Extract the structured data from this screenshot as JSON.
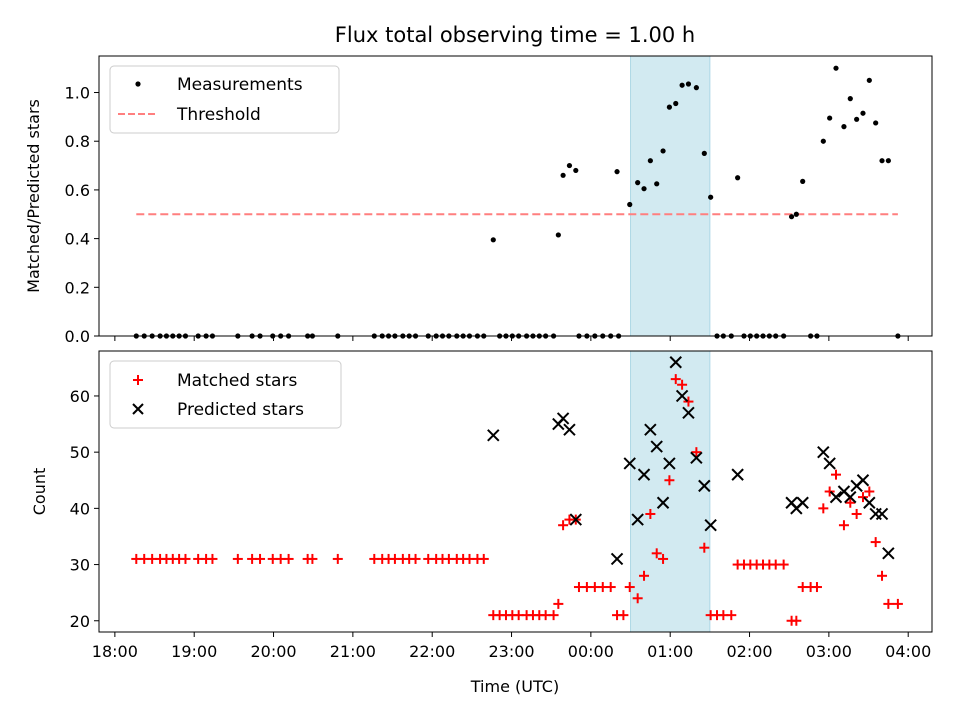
{
  "chart_data": [
    {
      "type": "scatter",
      "title": "Flux total observing time = 1.00 h",
      "ylabel": "Matched/Predicted stars",
      "xlim": [
        -0.2,
        10.3
      ],
      "ylim": [
        0,
        1.15
      ],
      "yticks": [
        0.0,
        0.2,
        0.4,
        0.6,
        0.8,
        1.0
      ],
      "ytick_labels": [
        "0.0",
        "0.2",
        "0.4",
        "0.6",
        "0.8",
        "1.0"
      ],
      "highlight": {
        "x_start": 6.5,
        "x_end": 7.5,
        "color": "#add8e6"
      },
      "legend": {
        "location": "top-left",
        "entries": [
          "Measurements",
          "Threshold"
        ]
      },
      "threshold": {
        "name": "Threshold",
        "y": 0.5,
        "x_range": [
          0.27,
          9.87
        ],
        "color": "#ff7f7f"
      },
      "series": [
        {
          "name": "Measurements",
          "color": "#000000",
          "points": [
            [
              0.27,
              0
            ],
            [
              0.37,
              0
            ],
            [
              0.47,
              0
            ],
            [
              0.57,
              0
            ],
            [
              0.65,
              0
            ],
            [
              0.73,
              0
            ],
            [
              0.81,
              0
            ],
            [
              0.89,
              0
            ],
            [
              1.05,
              0
            ],
            [
              1.15,
              0
            ],
            [
              1.23,
              0
            ],
            [
              1.55,
              0
            ],
            [
              1.73,
              0
            ],
            [
              1.83,
              0
            ],
            [
              1.99,
              0
            ],
            [
              2.09,
              0
            ],
            [
              2.19,
              0
            ],
            [
              2.43,
              0
            ],
            [
              2.49,
              0
            ],
            [
              2.81,
              0
            ],
            [
              3.27,
              0
            ],
            [
              3.37,
              0
            ],
            [
              3.45,
              0
            ],
            [
              3.53,
              0
            ],
            [
              3.63,
              0
            ],
            [
              3.71,
              0
            ],
            [
              3.79,
              0
            ],
            [
              3.95,
              0
            ],
            [
              4.05,
              0
            ],
            [
              4.13,
              0
            ],
            [
              4.21,
              0
            ],
            [
              4.31,
              0
            ],
            [
              4.39,
              0
            ],
            [
              4.47,
              0
            ],
            [
              4.57,
              0
            ],
            [
              4.65,
              0
            ],
            [
              4.77,
              0.395
            ],
            [
              4.85,
              0
            ],
            [
              4.93,
              0
            ],
            [
              5.01,
              0
            ],
            [
              5.09,
              0
            ],
            [
              5.19,
              0
            ],
            [
              5.27,
              0
            ],
            [
              5.35,
              0
            ],
            [
              5.43,
              0
            ],
            [
              5.53,
              0
            ],
            [
              5.59,
              0.415
            ],
            [
              5.65,
              0.66
            ],
            [
              5.73,
              0.7
            ],
            [
              5.81,
              0.68
            ],
            [
              5.85,
              0
            ],
            [
              5.95,
              0
            ],
            [
              6.05,
              0
            ],
            [
              6.15,
              0
            ],
            [
              6.25,
              0
            ],
            [
              6.33,
              0.675
            ],
            [
              6.35,
              0
            ],
            [
              6.49,
              0.54
            ],
            [
              6.59,
              0.63
            ],
            [
              6.67,
              0.605
            ],
            [
              6.75,
              0.72
            ],
            [
              6.83,
              0.625
            ],
            [
              6.91,
              0.76
            ],
            [
              6.99,
              0.94
            ],
            [
              7.07,
              0.955
            ],
            [
              7.15,
              1.03
            ],
            [
              7.23,
              1.035
            ],
            [
              7.33,
              1.02
            ],
            [
              7.43,
              0.75
            ],
            [
              7.51,
              0.57
            ],
            [
              7.59,
              0
            ],
            [
              7.67,
              0
            ],
            [
              7.77,
              0
            ],
            [
              7.85,
              0.65
            ],
            [
              7.93,
              0
            ],
            [
              8.01,
              0
            ],
            [
              8.09,
              0
            ],
            [
              8.17,
              0
            ],
            [
              8.25,
              0
            ],
            [
              8.33,
              0
            ],
            [
              8.43,
              0
            ],
            [
              8.53,
              0.49
            ],
            [
              8.59,
              0.5
            ],
            [
              8.67,
              0.635
            ],
            [
              8.77,
              0
            ],
            [
              8.85,
              0
            ],
            [
              8.93,
              0.8
            ],
            [
              9.01,
              0.895
            ],
            [
              9.09,
              1.1
            ],
            [
              9.19,
              0.86
            ],
            [
              9.27,
              0.975
            ],
            [
              9.35,
              0.89
            ],
            [
              9.43,
              0.915
            ],
            [
              9.51,
              1.05
            ],
            [
              9.59,
              0.875
            ],
            [
              9.67,
              0.72
            ],
            [
              9.75,
              0.72
            ],
            [
              9.87,
              0
            ]
          ]
        }
      ]
    },
    {
      "type": "scatter",
      "xlabel": "Time (UTC)",
      "ylabel": "Count",
      "xlim": [
        -0.2,
        10.3
      ],
      "ylim": [
        18,
        68
      ],
      "xticks": [
        0,
        1,
        2,
        3,
        4,
        5,
        6,
        7,
        8,
        9,
        10
      ],
      "xtick_labels": [
        "18:00",
        "19:00",
        "20:00",
        "21:00",
        "22:00",
        "23:00",
        "00:00",
        "01:00",
        "02:00",
        "03:00",
        "04:00"
      ],
      "yticks": [
        20,
        30,
        40,
        50,
        60
      ],
      "ytick_labels": [
        "20",
        "30",
        "40",
        "50",
        "60"
      ],
      "highlight": {
        "x_start": 6.5,
        "x_end": 7.5,
        "color": "#add8e6"
      },
      "legend": {
        "location": "top-left",
        "entries": [
          "Matched stars",
          "Predicted stars"
        ]
      },
      "series": [
        {
          "name": "Matched stars",
          "marker": "+",
          "color": "#ff0000",
          "points": [
            [
              0.27,
              31
            ],
            [
              0.37,
              31
            ],
            [
              0.47,
              31
            ],
            [
              0.57,
              31
            ],
            [
              0.65,
              31
            ],
            [
              0.73,
              31
            ],
            [
              0.81,
              31
            ],
            [
              0.89,
              31
            ],
            [
              1.05,
              31
            ],
            [
              1.15,
              31
            ],
            [
              1.23,
              31
            ],
            [
              1.55,
              31
            ],
            [
              1.73,
              31
            ],
            [
              1.83,
              31
            ],
            [
              1.99,
              31
            ],
            [
              2.09,
              31
            ],
            [
              2.19,
              31
            ],
            [
              2.43,
              31
            ],
            [
              2.49,
              31
            ],
            [
              2.81,
              31
            ],
            [
              3.27,
              31
            ],
            [
              3.37,
              31
            ],
            [
              3.45,
              31
            ],
            [
              3.53,
              31
            ],
            [
              3.63,
              31
            ],
            [
              3.71,
              31
            ],
            [
              3.79,
              31
            ],
            [
              3.95,
              31
            ],
            [
              4.05,
              31
            ],
            [
              4.13,
              31
            ],
            [
              4.21,
              31
            ],
            [
              4.31,
              31
            ],
            [
              4.39,
              31
            ],
            [
              4.47,
              31
            ],
            [
              4.57,
              31
            ],
            [
              4.65,
              31
            ],
            [
              4.77,
              21
            ],
            [
              4.85,
              21
            ],
            [
              4.93,
              21
            ],
            [
              5.01,
              21
            ],
            [
              5.09,
              21
            ],
            [
              5.19,
              21
            ],
            [
              5.27,
              21
            ],
            [
              5.35,
              21
            ],
            [
              5.43,
              21
            ],
            [
              5.53,
              21
            ],
            [
              5.59,
              23
            ],
            [
              5.65,
              37
            ],
            [
              5.73,
              38
            ],
            [
              5.81,
              38
            ],
            [
              5.85,
              26
            ],
            [
              5.95,
              26
            ],
            [
              6.05,
              26
            ],
            [
              6.15,
              26
            ],
            [
              6.25,
              26
            ],
            [
              6.33,
              21
            ],
            [
              6.41,
              21
            ],
            [
              6.49,
              26
            ],
            [
              6.59,
              24
            ],
            [
              6.67,
              28
            ],
            [
              6.75,
              39
            ],
            [
              6.83,
              32
            ],
            [
              6.91,
              31
            ],
            [
              6.99,
              45
            ],
            [
              7.07,
              63
            ],
            [
              7.15,
              62
            ],
            [
              7.23,
              59
            ],
            [
              7.33,
              50
            ],
            [
              7.43,
              33
            ],
            [
              7.51,
              21
            ],
            [
              7.59,
              21
            ],
            [
              7.67,
              21
            ],
            [
              7.77,
              21
            ],
            [
              7.85,
              30
            ],
            [
              7.93,
              30
            ],
            [
              8.01,
              30
            ],
            [
              8.09,
              30
            ],
            [
              8.17,
              30
            ],
            [
              8.25,
              30
            ],
            [
              8.33,
              30
            ],
            [
              8.43,
              30
            ],
            [
              8.53,
              20
            ],
            [
              8.59,
              20
            ],
            [
              8.67,
              26
            ],
            [
              8.77,
              26
            ],
            [
              8.85,
              26
            ],
            [
              8.93,
              40
            ],
            [
              9.01,
              43
            ],
            [
              9.09,
              46
            ],
            [
              9.19,
              37
            ],
            [
              9.27,
              41
            ],
            [
              9.35,
              39
            ],
            [
              9.43,
              42
            ],
            [
              9.51,
              43
            ],
            [
              9.59,
              34
            ],
            [
              9.67,
              28
            ],
            [
              9.75,
              23
            ],
            [
              9.87,
              23
            ]
          ]
        },
        {
          "name": "Predicted stars",
          "marker": "x",
          "color": "#000000",
          "points": [
            [
              4.77,
              53
            ],
            [
              5.59,
              55
            ],
            [
              5.65,
              56
            ],
            [
              5.73,
              54
            ],
            [
              5.81,
              38
            ],
            [
              6.33,
              31
            ],
            [
              6.49,
              48
            ],
            [
              6.59,
              38
            ],
            [
              6.67,
              46
            ],
            [
              6.75,
              54
            ],
            [
              6.83,
              51
            ],
            [
              6.91,
              41
            ],
            [
              6.99,
              48
            ],
            [
              7.07,
              66
            ],
            [
              7.15,
              60
            ],
            [
              7.23,
              57
            ],
            [
              7.33,
              49
            ],
            [
              7.43,
              44
            ],
            [
              7.51,
              37
            ],
            [
              7.85,
              46
            ],
            [
              8.53,
              41
            ],
            [
              8.59,
              40
            ],
            [
              8.67,
              41
            ],
            [
              8.93,
              50
            ],
            [
              9.01,
              48
            ],
            [
              9.09,
              42
            ],
            [
              9.19,
              43
            ],
            [
              9.27,
              42
            ],
            [
              9.35,
              44
            ],
            [
              9.43,
              45
            ],
            [
              9.51,
              41
            ],
            [
              9.59,
              39
            ],
            [
              9.67,
              39
            ],
            [
              9.75,
              32
            ]
          ]
        }
      ]
    }
  ]
}
